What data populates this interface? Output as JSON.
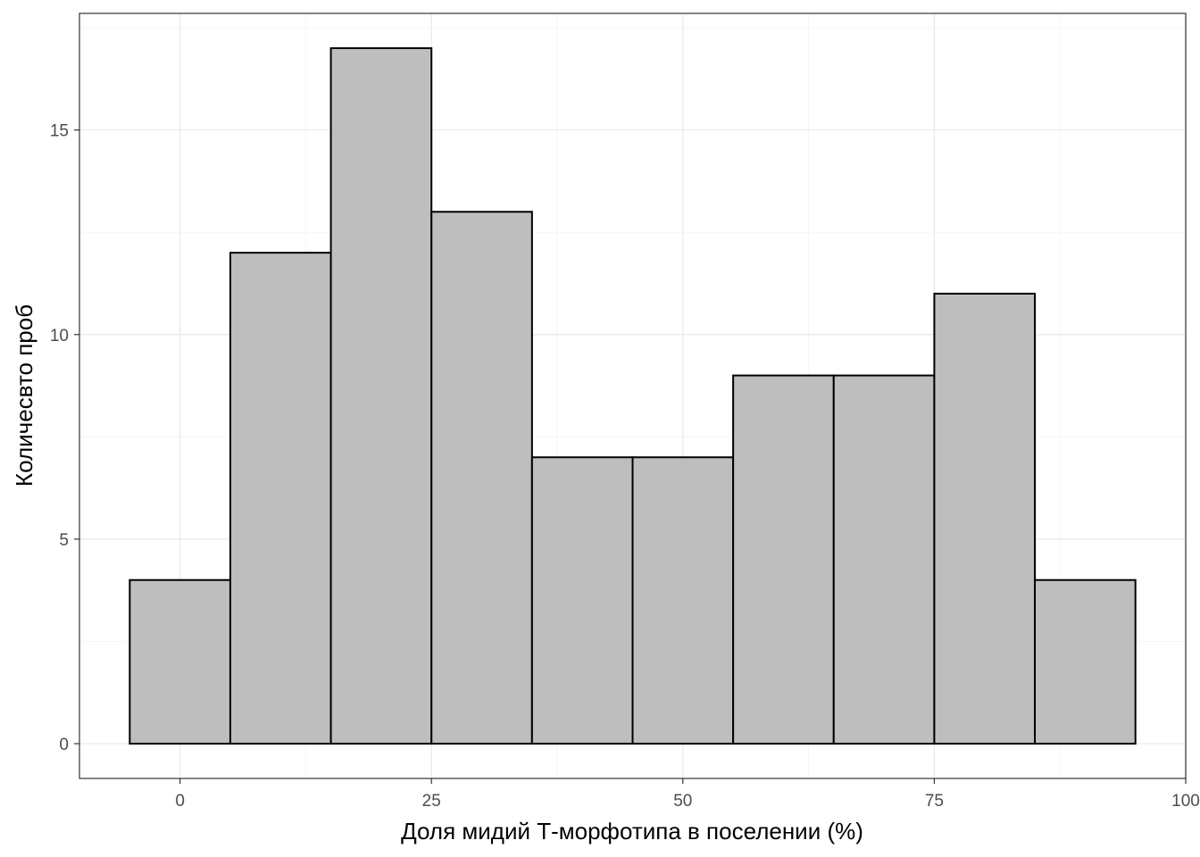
{
  "chart_data": {
    "type": "bar",
    "title": "",
    "xlabel": "Доля мидий Т-морфотипа в поселении (%)",
    "ylabel": "Количесвто проб",
    "bins": [
      {
        "x_start": -5,
        "x_end": 5,
        "count": 4
      },
      {
        "x_start": 5,
        "x_end": 15,
        "count": 12
      },
      {
        "x_start": 15,
        "x_end": 25,
        "count": 17
      },
      {
        "x_start": 25,
        "x_end": 35,
        "count": 13
      },
      {
        "x_start": 35,
        "x_end": 45,
        "count": 7
      },
      {
        "x_start": 45,
        "x_end": 55,
        "count": 7
      },
      {
        "x_start": 55,
        "x_end": 65,
        "count": 9
      },
      {
        "x_start": 65,
        "x_end": 75,
        "count": 9
      },
      {
        "x_start": 75,
        "x_end": 85,
        "count": 11
      },
      {
        "x_start": 85,
        "x_end": 95,
        "count": 4
      }
    ],
    "xlim": [
      -10,
      100
    ],
    "ylim": [
      -0.85,
      17.85
    ],
    "x_ticks": [
      0,
      25,
      50,
      75,
      100
    ],
    "y_ticks": [
      0,
      5,
      10,
      15
    ],
    "x_tick_labels": [
      "0",
      "25",
      "50",
      "75",
      "100"
    ],
    "y_tick_labels": [
      "0",
      "5",
      "10",
      "15"
    ],
    "grid": true,
    "colors": {
      "bar_fill": "#bebebe",
      "bar_stroke": "#000000",
      "grid_major": "#ebebeb",
      "grid_minor": "#f5f5f5",
      "panel_border": "#333333",
      "tick_text": "#4d4d4d",
      "axis_title": "#000000"
    }
  }
}
